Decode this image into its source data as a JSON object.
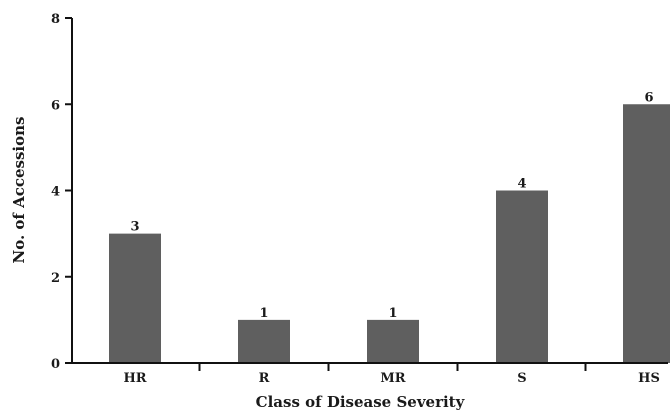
{
  "chart_data": {
    "type": "bar",
    "title": "",
    "xlabel": "Class of Disease Severity",
    "ylabel": "No. of Accessions",
    "categories": [
      "HR",
      "R",
      "MR",
      "S",
      "HS"
    ],
    "values": [
      3,
      1,
      1,
      4,
      6
    ],
    "data_labels": [
      "3",
      "1",
      "1",
      "4",
      "6"
    ],
    "ylim": [
      0,
      8
    ],
    "yticks": [
      0,
      2,
      4,
      6,
      8
    ],
    "ytick_labels": [
      "0",
      "2",
      "4",
      "6",
      "8"
    ],
    "grid": false,
    "legend": "none",
    "bar_color": "#5f5f5f"
  }
}
